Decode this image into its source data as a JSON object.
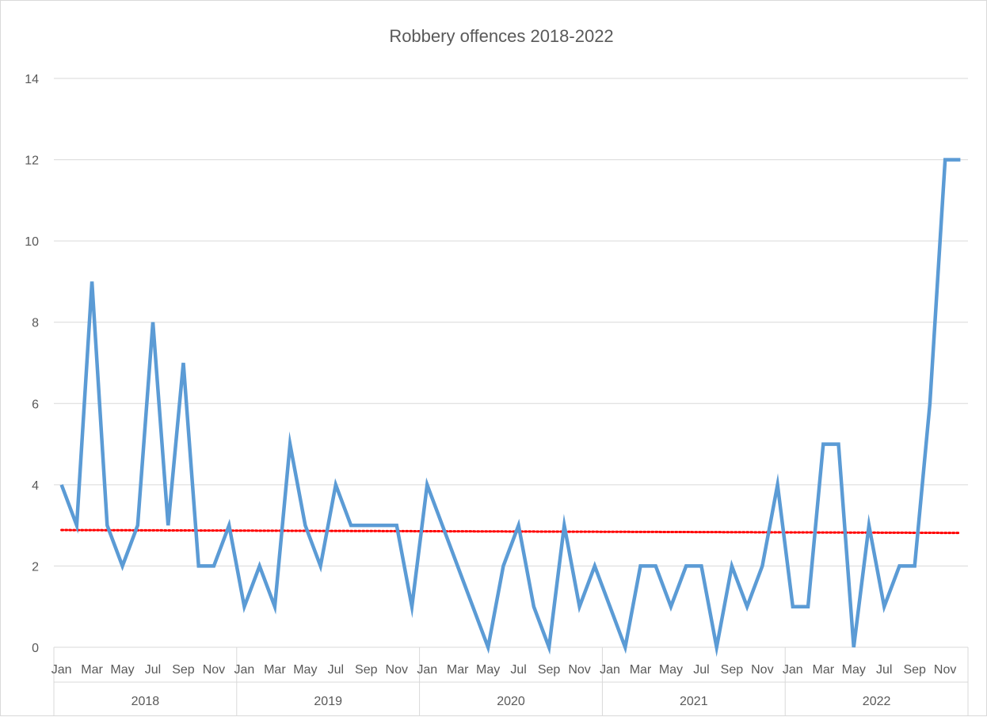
{
  "chart_data": {
    "type": "line",
    "title": "Robbery offences 2018-2022",
    "xlabel": "",
    "ylabel": "",
    "ylim": [
      0,
      14
    ],
    "yticks": [
      0,
      2,
      4,
      6,
      8,
      10,
      12,
      14
    ],
    "grid": true,
    "legend": "none",
    "years": [
      "2018",
      "2019",
      "2020",
      "2021",
      "2022"
    ],
    "month_tick_labels": [
      "Jan",
      "Mar",
      "May",
      "Jul",
      "Sep",
      "Nov"
    ],
    "series": [
      {
        "values": [
          4,
          3,
          9,
          3,
          2,
          3,
          8,
          3,
          7,
          2,
          2,
          3,
          1,
          2,
          1,
          5,
          3,
          2,
          4,
          3,
          3,
          3,
          3,
          1,
          4,
          3,
          2,
          1,
          0,
          2,
          3,
          1,
          0,
          3,
          1,
          2,
          1,
          0,
          2,
          2,
          1,
          2,
          2,
          0,
          2,
          1,
          2,
          4,
          1,
          1,
          5,
          5,
          0,
          3,
          1,
          2,
          2,
          6,
          12,
          12
        ],
        "color": "#5b9bd5"
      }
    ],
    "trendline": {
      "type": "linear",
      "style": "dotted",
      "color": "#ff0000"
    }
  }
}
